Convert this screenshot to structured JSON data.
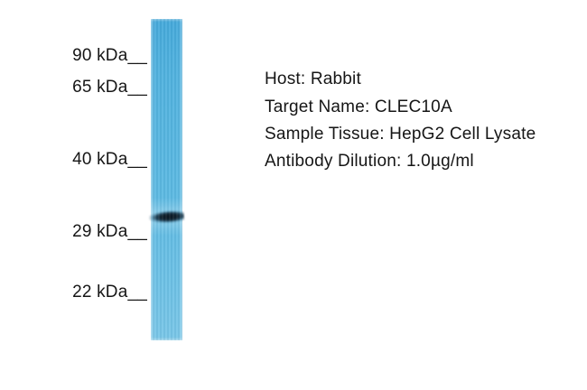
{
  "figure": {
    "type": "western-blot",
    "background_color": "#ffffff",
    "lane": {
      "color_top": "#46aadb",
      "color_bottom": "#7ac7e8",
      "band_color": "#0a151f"
    },
    "markers": [
      {
        "label": "90 kDa__"
      },
      {
        "label": "65 kDa__"
      },
      {
        "label": "40 kDa__"
      },
      {
        "label": "29 kDa__"
      },
      {
        "label": "22 kDa__"
      }
    ],
    "annotations": [
      "Host: Rabbit",
      "Target Name: CLEC10A",
      "Sample Tissue: HepG2 Cell Lysate",
      "Antibody Dilution: 1.0µg/ml"
    ]
  }
}
